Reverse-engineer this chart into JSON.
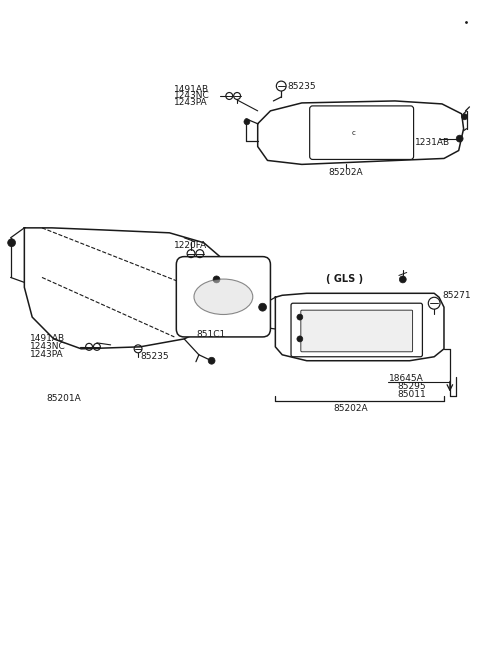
{
  "bg": "#ffffff",
  "lc": "#1a1a1a",
  "tc": "#1a1a1a",
  "fw": 4.8,
  "fh": 6.57,
  "dpi": 100,
  "p": {
    "85201A": "85201A",
    "85202A": "85202A",
    "851C1": "851C1",
    "85235": "85235",
    "1220FA": "1220FA",
    "1491AB": "1491AB",
    "1243NC": "1243NC",
    "1243PA": "1243PA",
    "1231AB": "1231AB",
    "GLS": "( GLS )",
    "85271": "85271",
    "18645A": "18645A",
    "85295": "85295",
    "85011": "85011"
  }
}
